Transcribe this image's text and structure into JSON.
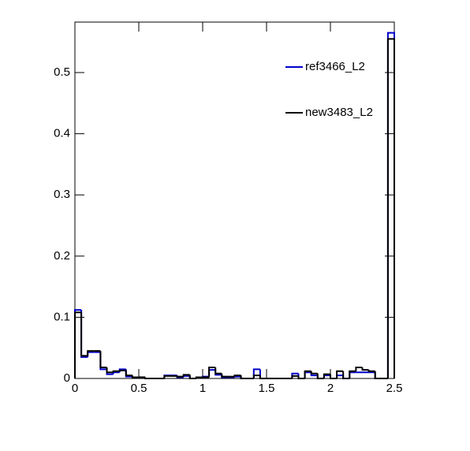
{
  "chart_data": {
    "type": "histogram",
    "bins": [
      0,
      0.05,
      0.1,
      0.15,
      0.2,
      0.25,
      0.3,
      0.35,
      0.4,
      0.45,
      0.5,
      0.55,
      0.6,
      0.65,
      0.7,
      0.75,
      0.8,
      0.85,
      0.9,
      0.95,
      1,
      1.05,
      1.1,
      1.15,
      1.2,
      1.25,
      1.3,
      1.35,
      1.4,
      1.45,
      1.5,
      1.55,
      1.6,
      1.65,
      1.7,
      1.75,
      1.8,
      1.85,
      1.9,
      1.95,
      2,
      2.05,
      2.1,
      2.15,
      2.2,
      2.25,
      2.3,
      2.35,
      2.4,
      2.45,
      2.5
    ],
    "series": [
      {
        "name": "ref3466_L2",
        "color": "#0000cc",
        "values": [
          0.112,
          0.035,
          0.043,
          0.043,
          0.015,
          0.007,
          0.01,
          0.015,
          0.003,
          0.002,
          0.002,
          0,
          0,
          0,
          0.005,
          0.005,
          0.002,
          0.004,
          0,
          0.002,
          0.003,
          0.014,
          0.006,
          0.002,
          0.002,
          0.003,
          0,
          0,
          0.015,
          0,
          0,
          0,
          0,
          0,
          0.008,
          0,
          0.01,
          0.005,
          0,
          0.005,
          0,
          0.005,
          0,
          0.01,
          0.01,
          0.01,
          0.01,
          0,
          0,
          0.565
        ]
      },
      {
        "name": "new3483_L2",
        "color": "#000000",
        "values": [
          0.108,
          0.037,
          0.045,
          0.045,
          0.018,
          0.01,
          0.012,
          0.013,
          0.005,
          0.002,
          0.002,
          0,
          0,
          0,
          0.004,
          0.004,
          0.003,
          0.006,
          0,
          0.002,
          0.002,
          0.018,
          0.008,
          0.003,
          0.003,
          0.005,
          0,
          0,
          0.005,
          0,
          0,
          0,
          0,
          0,
          0.004,
          0,
          0.012,
          0.008,
          0,
          0.007,
          0,
          0.012,
          0,
          0.012,
          0.018,
          0.014,
          0.012,
          0,
          0,
          0.555
        ]
      }
    ],
    "xlim": [
      0,
      2.5
    ],
    "xticks": [
      0,
      0.5,
      1,
      1.5,
      2,
      2.5
    ],
    "ylim": [
      0,
      0.5825
    ],
    "yticks": [
      0,
      0.1,
      0.2,
      0.3,
      0.4,
      0.5
    ],
    "legend": "top-right"
  }
}
